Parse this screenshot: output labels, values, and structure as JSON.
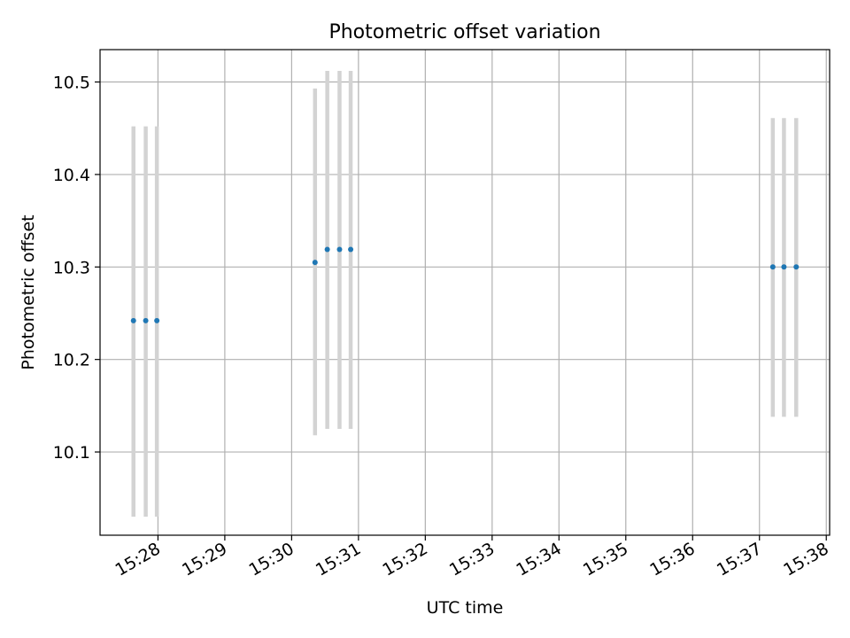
{
  "chart_data": {
    "type": "scatter",
    "title": "Photometric offset variation",
    "xlabel": "UTC time",
    "ylabel": "Photometric offset",
    "xlim": [
      "15:27:08",
      "15:38:03"
    ],
    "ylim": [
      10.01,
      10.535
    ],
    "x_ticks": [
      "15:28",
      "15:29",
      "15:30",
      "15:31",
      "15:32",
      "15:33",
      "15:34",
      "15:35",
      "15:36",
      "15:37",
      "15:38"
    ],
    "y_ticks": [
      10.1,
      10.2,
      10.3,
      10.4,
      10.5
    ],
    "grid": true,
    "marker_color": "#1f77b4",
    "errorbar_color": "#d3d3d3",
    "points": [
      {
        "time": "15:27:38",
        "value": 10.242,
        "low": 10.03,
        "high": 10.452
      },
      {
        "time": "15:27:49",
        "value": 10.242,
        "low": 10.03,
        "high": 10.452
      },
      {
        "time": "15:27:59",
        "value": 10.242,
        "low": 10.03,
        "high": 10.452
      },
      {
        "time": "15:30:21",
        "value": 10.305,
        "low": 10.118,
        "high": 10.493
      },
      {
        "time": "15:30:32",
        "value": 10.319,
        "low": 10.125,
        "high": 10.512
      },
      {
        "time": "15:30:43",
        "value": 10.319,
        "low": 10.125,
        "high": 10.512
      },
      {
        "time": "15:30:53",
        "value": 10.319,
        "low": 10.125,
        "high": 10.512
      },
      {
        "time": "15:37:12",
        "value": 10.3,
        "low": 10.138,
        "high": 10.461
      },
      {
        "time": "15:37:22",
        "value": 10.3,
        "low": 10.138,
        "high": 10.461
      },
      {
        "time": "15:37:33",
        "value": 10.3,
        "low": 10.138,
        "high": 10.461
      }
    ]
  }
}
